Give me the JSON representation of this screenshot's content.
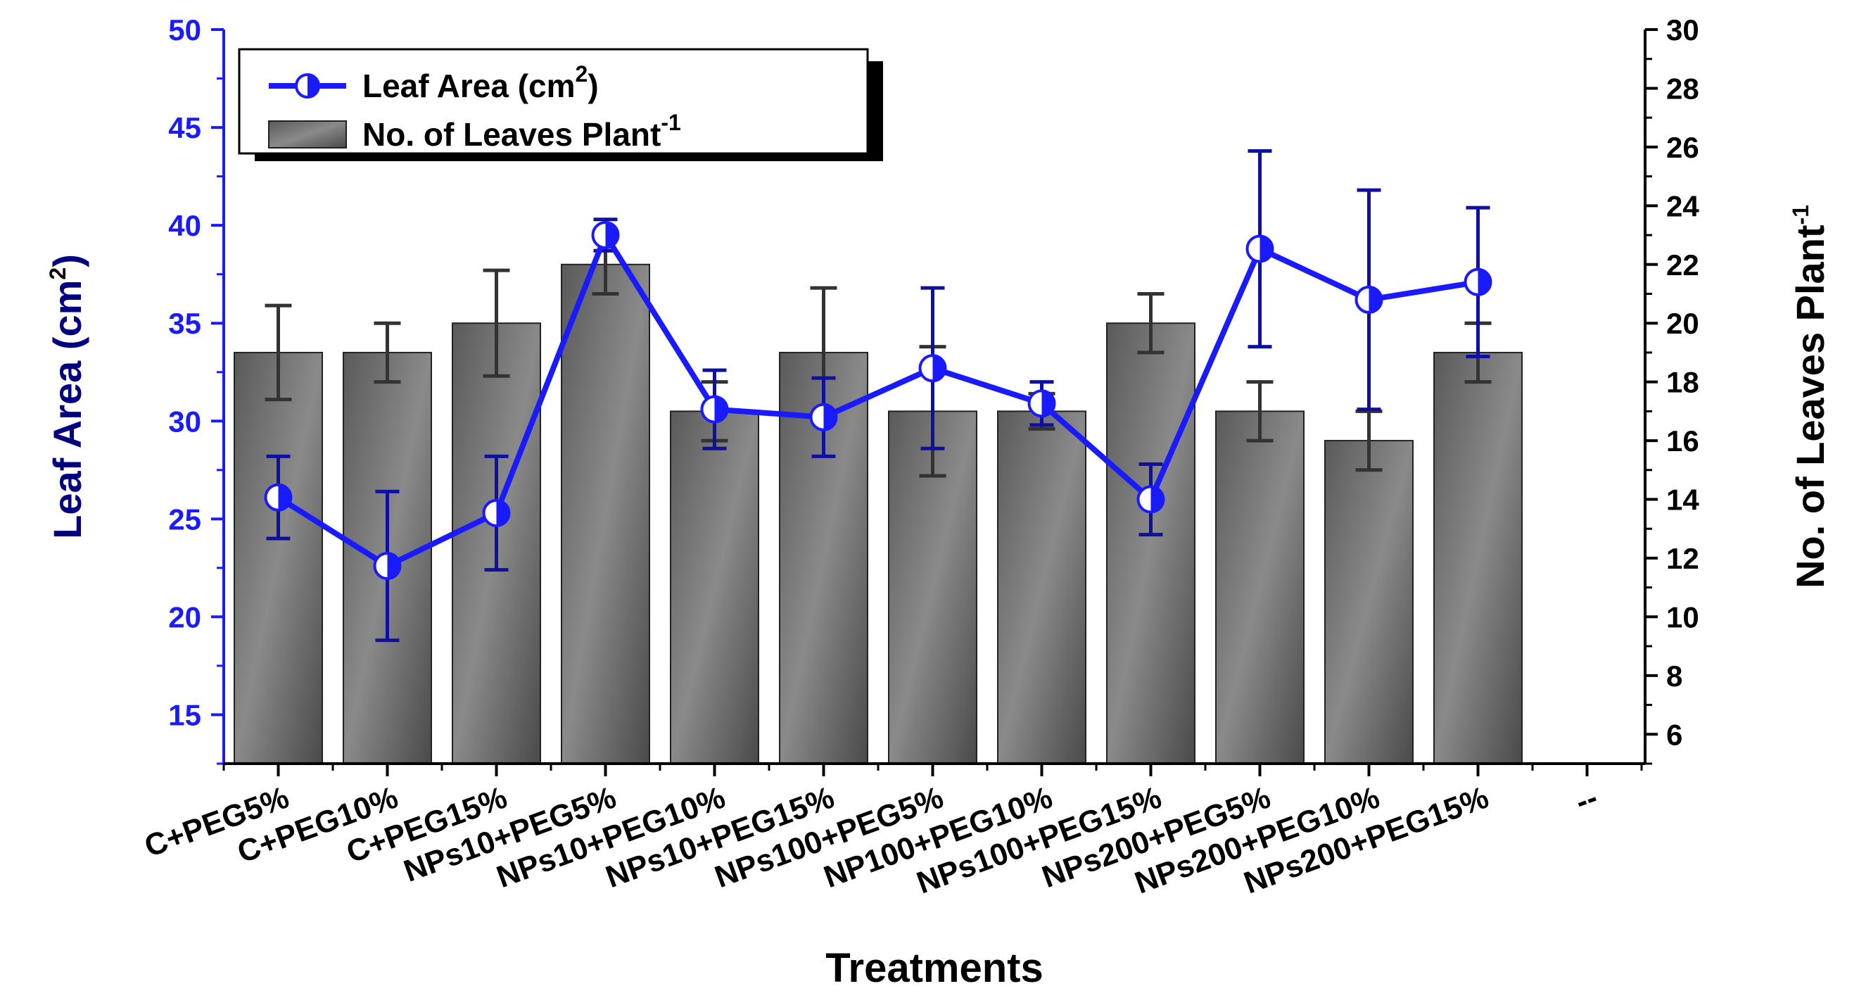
{
  "chart_data": {
    "type": "bar+line",
    "categories": [
      "C+PEG5%",
      "C+PEG10%",
      "C+PEG15%",
      "NPs10+PEG5%",
      "NPs10+PEG10%",
      "NPs10+PEG15%",
      "NPs100+PEG5%",
      "NP100+PEG10%",
      "NPs100+PEG15%",
      "NPs200+PEG5%",
      "NPs200+PEG10%",
      "NPs200+PEG15%"
    ],
    "extra_tick_label": "--",
    "xlabel": "Treatments",
    "series": [
      {
        "name": "Leaf Area (cm",
        "name_sup": "2",
        "name_suffix": ")",
        "kind": "line",
        "axis": "left",
        "values": [
          26.1,
          22.6,
          25.3,
          39.5,
          30.6,
          30.2,
          32.7,
          30.9,
          26.0,
          38.8,
          36.2,
          37.1
        ],
        "errors": [
          2.1,
          3.8,
          2.9,
          0.8,
          2.0,
          2.0,
          4.1,
          1.1,
          1.8,
          5.0,
          5.6,
          3.8
        ],
        "color": "#1a1aff"
      },
      {
        "name": "No. of Leaves Plant",
        "name_sup": "-1",
        "name_suffix": "",
        "kind": "bar",
        "axis": "right",
        "values": [
          19,
          19,
          20,
          22,
          17,
          19,
          17,
          17,
          20,
          17,
          16,
          19
        ],
        "errors": [
          1.6,
          1.0,
          1.8,
          1.0,
          1.0,
          2.2,
          2.2,
          0.6,
          1.0,
          1.0,
          1.0,
          1.0
        ],
        "color": "#6e6e6e"
      }
    ],
    "left_axis": {
      "label": "Leaf Area (cm",
      "label_sup": "2",
      "label_suffix": ")",
      "range": [
        12.5,
        50
      ],
      "ticks": [
        15,
        20,
        25,
        30,
        35,
        40,
        45,
        50
      ],
      "color": "#1a1aff"
    },
    "right_axis": {
      "label": "No. of Leaves Plant",
      "label_sup": "-1",
      "range": [
        5,
        30
      ],
      "ticks": [
        6,
        8,
        10,
        12,
        14,
        16,
        18,
        20,
        22,
        24,
        26,
        28,
        30
      ]
    },
    "legend_position": "top-left"
  }
}
